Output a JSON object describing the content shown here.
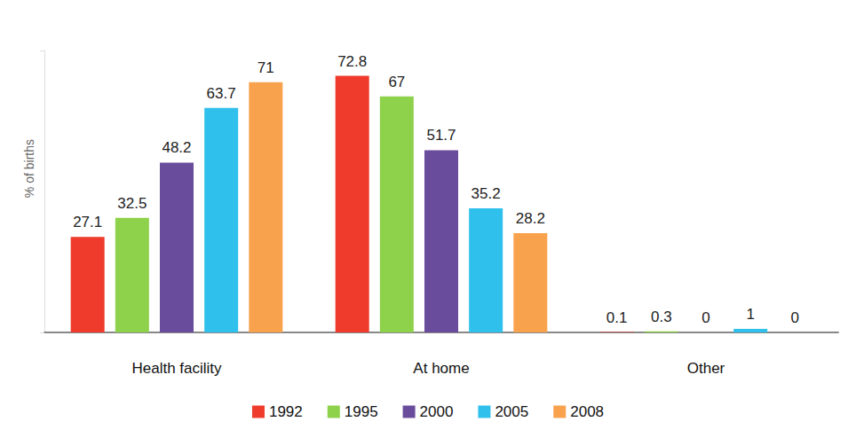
{
  "chart_data": {
    "type": "bar",
    "y_label": "% of births",
    "categories": [
      "Health facility",
      "At home",
      "Other"
    ],
    "series": [
      {
        "name": "1992",
        "color": "#ee3b2c",
        "values": [
          27.1,
          72.8,
          0.1
        ]
      },
      {
        "name": "1995",
        "color": "#8ed14b",
        "values": [
          32.5,
          67,
          0.3
        ]
      },
      {
        "name": "2000",
        "color": "#6a4c9c",
        "values": [
          48.2,
          51.7,
          0
        ]
      },
      {
        "name": "2005",
        "color": "#2fc0ec",
        "values": [
          63.7,
          35.2,
          1
        ]
      },
      {
        "name": "2008",
        "color": "#f9a24e",
        "values": [
          71,
          28.2,
          0
        ]
      }
    ],
    "ylim": [
      0,
      80
    ],
    "yticks": [
      0,
      80
    ],
    "grid": false,
    "legend": "bottom",
    "data_labels": true,
    "tick_labels": "x"
  }
}
